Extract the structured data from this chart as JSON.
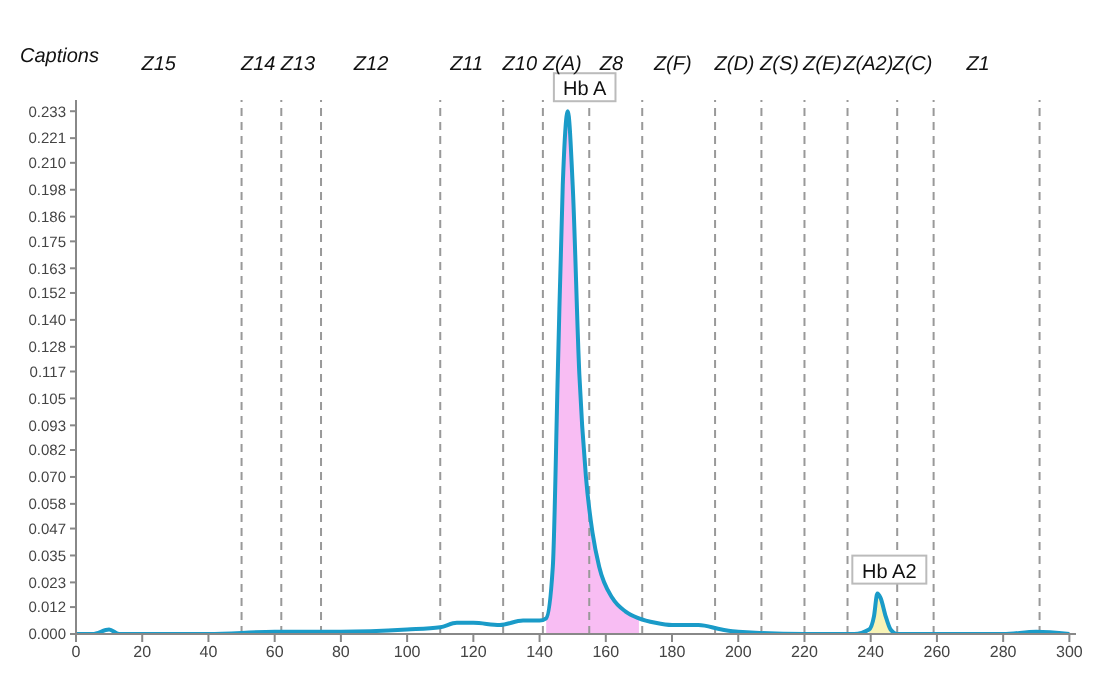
{
  "chart_data": {
    "type": "line",
    "xlim": [
      0,
      302
    ],
    "ylim": [
      0,
      0.238
    ],
    "xticks": [
      0,
      20,
      40,
      60,
      80,
      100,
      120,
      140,
      160,
      180,
      200,
      220,
      240,
      260,
      280,
      300
    ],
    "yticks": [
      {
        "value": 0,
        "label": "0.000"
      },
      {
        "value": 0.012,
        "label": "0.012"
      },
      {
        "value": 0.023,
        "label": "0.023"
      },
      {
        "value": 0.035,
        "label": "0.035"
      },
      {
        "value": 0.047,
        "label": "0.047"
      },
      {
        "value": 0.058,
        "label": "0.058"
      },
      {
        "value": 0.07,
        "label": "0.070"
      },
      {
        "value": 0.082,
        "label": "0.082"
      },
      {
        "value": 0.093,
        "label": "0.093"
      },
      {
        "value": 0.105,
        "label": "0.105"
      },
      {
        "value": 0.117,
        "label": "0.117"
      },
      {
        "value": 0.128,
        "label": "0.128"
      },
      {
        "value": 0.14,
        "label": "0.140"
      },
      {
        "value": 0.152,
        "label": "0.152"
      },
      {
        "value": 0.163,
        "label": "0.163"
      },
      {
        "value": 0.175,
        "label": "0.175"
      },
      {
        "value": 0.186,
        "label": "0.186"
      },
      {
        "value": 0.198,
        "label": "0.198"
      },
      {
        "value": 0.21,
        "label": "0.210"
      },
      {
        "value": 0.221,
        "label": "0.221"
      },
      {
        "value": 0.233,
        "label": "0.233"
      }
    ],
    "marker": "none",
    "line_style": "solid",
    "series": [
      {
        "type": "area",
        "color": "#f7b6f2",
        "x": [
          142,
          144,
          145.5,
          147,
          148.5,
          150,
          152,
          154,
          156,
          158,
          162,
          166,
          170
        ],
        "values": [
          0.007,
          0.03,
          0.116,
          0.2,
          0.233,
          0.2,
          0.116,
          0.07,
          0.045,
          0.03,
          0.016,
          0.01,
          0.007
        ]
      },
      {
        "type": "area",
        "color": "#f6f2ae",
        "x": [
          239.5,
          241,
          242,
          243,
          244.5,
          246
        ],
        "values": [
          0.002,
          0.008,
          0.018,
          0.016,
          0.008,
          0.002
        ]
      },
      {
        "color": "#1a9bc8",
        "x": [
          0,
          5,
          10,
          13,
          20,
          40,
          60,
          80,
          100,
          110,
          115,
          120,
          128,
          135,
          140,
          142,
          144,
          145.5,
          147,
          148.5,
          150,
          152,
          154,
          156,
          158,
          162,
          166,
          170,
          175,
          180,
          188,
          195,
          200,
          220,
          235,
          239.5,
          241,
          242,
          243,
          244.5,
          246,
          248,
          250,
          280,
          290,
          300
        ],
        "values": [
          0,
          0,
          0.002,
          0,
          0,
          0,
          0.001,
          0.001,
          0.002,
          0.003,
          0.005,
          0.005,
          0.004,
          0.006,
          0.006,
          0.007,
          0.03,
          0.116,
          0.2,
          0.233,
          0.2,
          0.116,
          0.07,
          0.045,
          0.03,
          0.016,
          0.01,
          0.007,
          0.005,
          0.004,
          0.004,
          0.002,
          0.001,
          0,
          0,
          0.002,
          0.008,
          0.018,
          0.016,
          0.008,
          0.002,
          0,
          0,
          0,
          0.001,
          0
        ]
      }
    ],
    "ref_lines": [
      {
        "axis": "x",
        "value": 50,
        "label": "Z14",
        "line_style": "dashed"
      },
      {
        "axis": "x",
        "value": 62,
        "label": "Z13",
        "line_style": "dashed"
      },
      {
        "axis": "x",
        "value": 74,
        "label": "Z12",
        "line_style": "dashed"
      },
      {
        "axis": "x",
        "value": 110,
        "label": "Z11",
        "line_style": "dashed"
      },
      {
        "axis": "x",
        "value": 129,
        "label": "Z10",
        "line_style": "dashed"
      },
      {
        "axis": "x",
        "value": 141,
        "label": "Z(A)",
        "line_style": "dashed"
      },
      {
        "axis": "x",
        "value": 155,
        "label": "Z8",
        "line_style": "dashed"
      },
      {
        "axis": "x",
        "value": 171,
        "label": "Z(F)",
        "line_style": "dashed"
      },
      {
        "axis": "x",
        "value": 193,
        "label": "Z(D)",
        "line_style": "dashed"
      },
      {
        "axis": "x",
        "value": 207,
        "label": "Z(S)",
        "line_style": "dashed"
      },
      {
        "axis": "x",
        "value": 220,
        "label": "Z(E)",
        "line_style": "dashed"
      },
      {
        "axis": "x",
        "value": 233,
        "label": "Z(A2)",
        "line_style": "dashed"
      },
      {
        "axis": "x",
        "value": 248,
        "label": "Z(C)",
        "line_style": "dashed"
      },
      {
        "axis": "x",
        "value": 259,
        "label": "Z1",
        "line_style": "dashed"
      },
      {
        "axis": "x",
        "value": 291,
        "label": null,
        "line_style": "dashed"
      }
    ],
    "annotations": [
      "Captions",
      "Z15",
      {
        "text": "Hb A",
        "x": 150,
        "y": 0.233
      },
      {
        "text": "Hb A2",
        "x": 242,
        "y": 0.018
      }
    ]
  }
}
